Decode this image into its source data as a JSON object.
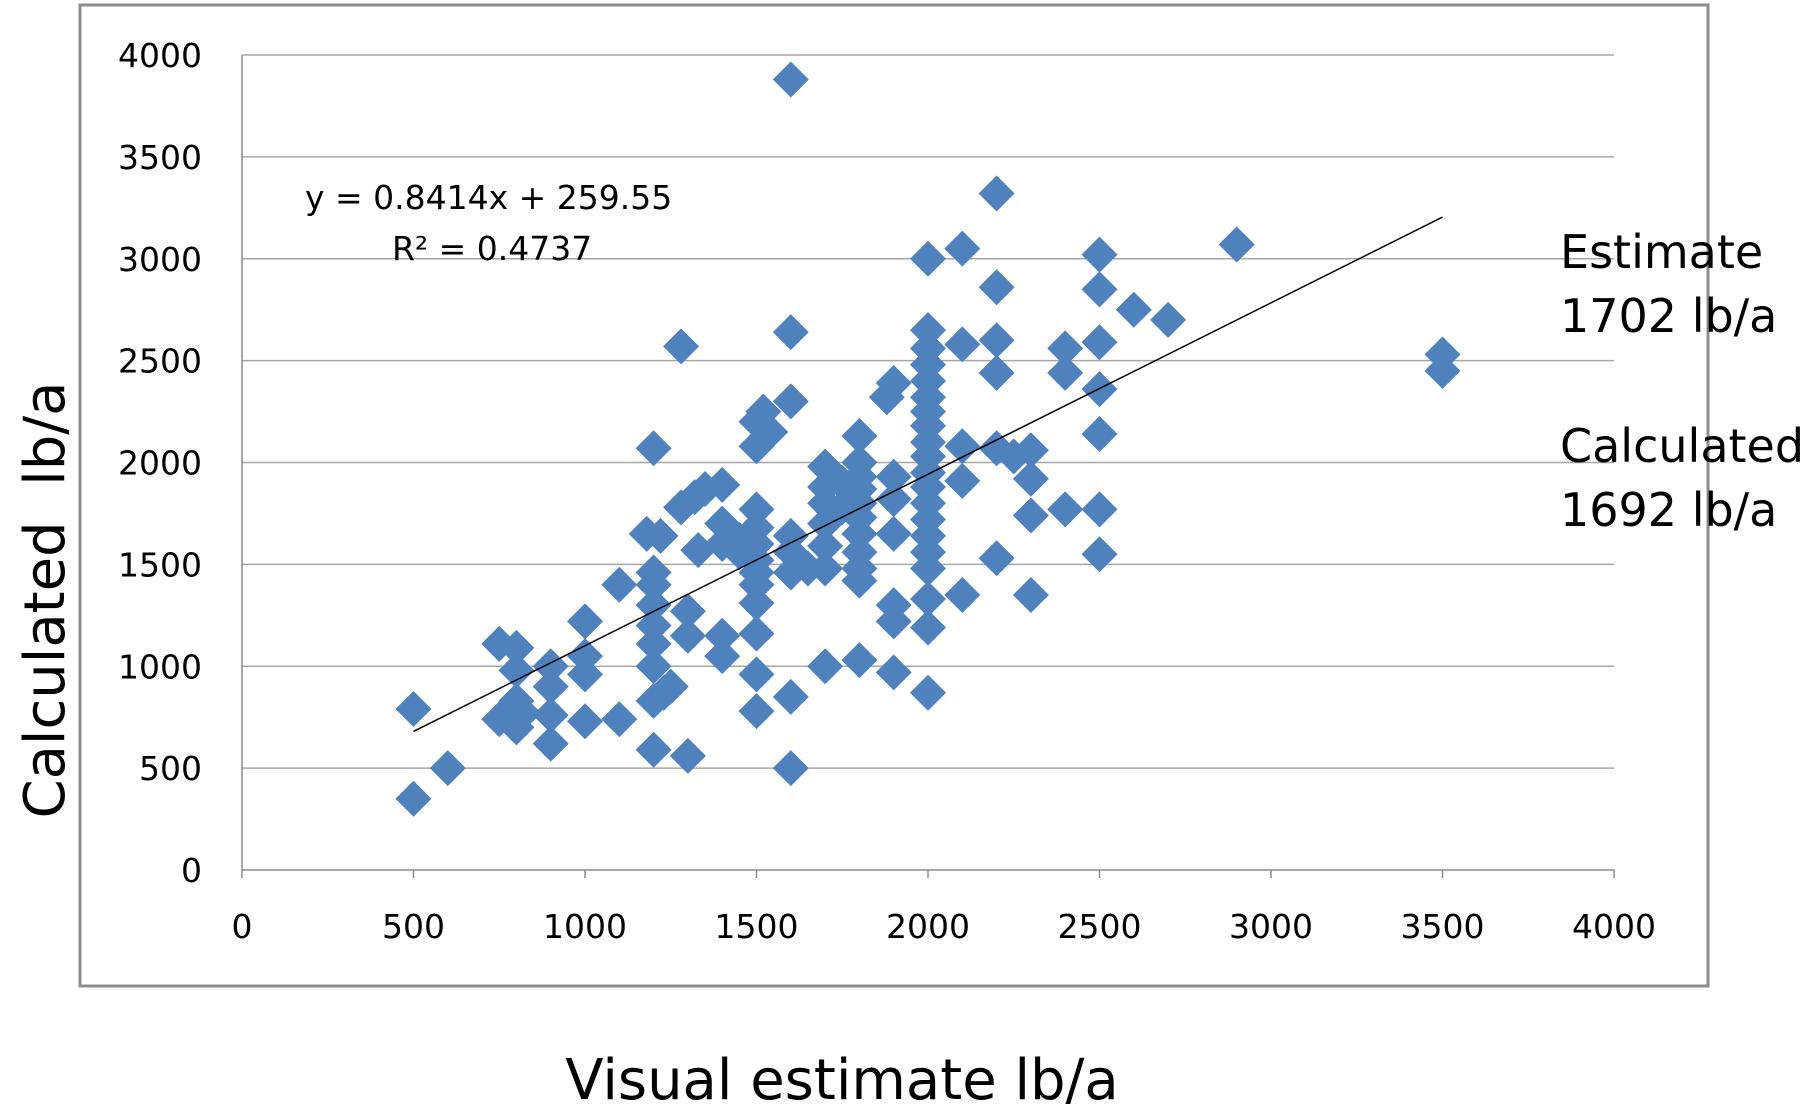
{
  "chart_data": {
    "type": "scatter",
    "xlabel": "Visual estimate lb/a",
    "ylabel": "Calculated  lb/a",
    "xlim": [
      0,
      4000
    ],
    "ylim": [
      0,
      4000
    ],
    "x_ticks": [
      "0",
      "500",
      "1000",
      "1500",
      "2000",
      "2500",
      "3000",
      "3500",
      "4000"
    ],
    "y_ticks": [
      "0",
      "500",
      "1000",
      "1500",
      "2000",
      "2500",
      "3000",
      "3500",
      "4000"
    ],
    "grid": "horizontal",
    "marker_color": "#4f81bd",
    "trendline": {
      "slope": 0.8414,
      "intercept": 259.55,
      "x_range": [
        500,
        3500
      ],
      "equation": "y = 0.8414x + 259.55",
      "r_squared": "R² = 0.4737"
    },
    "annotations": {
      "estimate_label": "Estimate",
      "estimate_value": "1702 lb/a",
      "calculated_label": "Calculated",
      "calculated_value": "1692 lb/a"
    },
    "points": [
      [
        500,
        790
      ],
      [
        500,
        350
      ],
      [
        600,
        500
      ],
      [
        750,
        1110
      ],
      [
        750,
        740
      ],
      [
        800,
        1090
      ],
      [
        800,
        980
      ],
      [
        800,
        830
      ],
      [
        800,
        700
      ],
      [
        820,
        770
      ],
      [
        900,
        1000
      ],
      [
        900,
        900
      ],
      [
        900,
        760
      ],
      [
        900,
        620
      ],
      [
        1000,
        1220
      ],
      [
        1000,
        1050
      ],
      [
        1000,
        960
      ],
      [
        1000,
        730
      ],
      [
        1100,
        1400
      ],
      [
        1100,
        740
      ],
      [
        1180,
        1650
      ],
      [
        1200,
        2070
      ],
      [
        1200,
        1460
      ],
      [
        1200,
        1400
      ],
      [
        1200,
        1300
      ],
      [
        1200,
        1200
      ],
      [
        1200,
        1110
      ],
      [
        1200,
        1000
      ],
      [
        1200,
        830
      ],
      [
        1200,
        590
      ],
      [
        1220,
        1640
      ],
      [
        1230,
        870
      ],
      [
        1250,
        900
      ],
      [
        1280,
        2570
      ],
      [
        1280,
        1780
      ],
      [
        1300,
        1270
      ],
      [
        1300,
        1150
      ],
      [
        1300,
        560
      ],
      [
        1320,
        1830
      ],
      [
        1330,
        1570
      ],
      [
        1350,
        1870
      ],
      [
        1400,
        1890
      ],
      [
        1400,
        1700
      ],
      [
        1400,
        1600
      ],
      [
        1400,
        1150
      ],
      [
        1400,
        1050
      ],
      [
        1450,
        1620
      ],
      [
        1450,
        1560
      ],
      [
        1500,
        2200
      ],
      [
        1500,
        2080
      ],
      [
        1500,
        1770
      ],
      [
        1500,
        1680
      ],
      [
        1500,
        1600
      ],
      [
        1500,
        1520
      ],
      [
        1500,
        1460
      ],
      [
        1500,
        1400
      ],
      [
        1500,
        1310
      ],
      [
        1500,
        1160
      ],
      [
        1500,
        960
      ],
      [
        1500,
        780
      ],
      [
        1520,
        2250
      ],
      [
        1540,
        2150
      ],
      [
        1600,
        3880
      ],
      [
        1600,
        2640
      ],
      [
        1600,
        2300
      ],
      [
        1600,
        1640
      ],
      [
        1600,
        1560
      ],
      [
        1600,
        1460
      ],
      [
        1600,
        850
      ],
      [
        1600,
        500
      ],
      [
        1650,
        1480
      ],
      [
        1700,
        1980
      ],
      [
        1700,
        1880
      ],
      [
        1700,
        1800
      ],
      [
        1700,
        1700
      ],
      [
        1700,
        1590
      ],
      [
        1700,
        1480
      ],
      [
        1700,
        1000
      ],
      [
        1750,
        1900
      ],
      [
        1750,
        1780
      ],
      [
        1800,
        2130
      ],
      [
        1800,
        2000
      ],
      [
        1800,
        1930
      ],
      [
        1800,
        1870
      ],
      [
        1800,
        1800
      ],
      [
        1800,
        1730
      ],
      [
        1800,
        1650
      ],
      [
        1800,
        1560
      ],
      [
        1800,
        1480
      ],
      [
        1800,
        1420
      ],
      [
        1800,
        1030
      ],
      [
        1880,
        2320
      ],
      [
        1900,
        2390
      ],
      [
        1900,
        1930
      ],
      [
        1900,
        1820
      ],
      [
        1900,
        1650
      ],
      [
        1900,
        1300
      ],
      [
        1900,
        1220
      ],
      [
        1900,
        970
      ],
      [
        2000,
        3000
      ],
      [
        2000,
        2650
      ],
      [
        2000,
        2560
      ],
      [
        2000,
        2480
      ],
      [
        2000,
        2400
      ],
      [
        2000,
        2320
      ],
      [
        2000,
        2250
      ],
      [
        2000,
        2180
      ],
      [
        2000,
        2100
      ],
      [
        2000,
        2030
      ],
      [
        2000,
        1950
      ],
      [
        2000,
        1880
      ],
      [
        2000,
        1800
      ],
      [
        2000,
        1720
      ],
      [
        2000,
        1640
      ],
      [
        2000,
        1560
      ],
      [
        2000,
        1480
      ],
      [
        2000,
        1330
      ],
      [
        2000,
        1190
      ],
      [
        2000,
        870
      ],
      [
        2100,
        3050
      ],
      [
        2100,
        2580
      ],
      [
        2100,
        2080
      ],
      [
        2100,
        1910
      ],
      [
        2100,
        1350
      ],
      [
        2200,
        3320
      ],
      [
        2200,
        2860
      ],
      [
        2200,
        2600
      ],
      [
        2200,
        2440
      ],
      [
        2200,
        2070
      ],
      [
        2200,
        1530
      ],
      [
        2250,
        2030
      ],
      [
        2300,
        2060
      ],
      [
        2300,
        1920
      ],
      [
        2300,
        1740
      ],
      [
        2300,
        1350
      ],
      [
        2400,
        2560
      ],
      [
        2400,
        2440
      ],
      [
        2400,
        1770
      ],
      [
        2500,
        3020
      ],
      [
        2500,
        2850
      ],
      [
        2500,
        2590
      ],
      [
        2500,
        2360
      ],
      [
        2500,
        2140
      ],
      [
        2500,
        1770
      ],
      [
        2500,
        1550
      ],
      [
        2600,
        2750
      ],
      [
        2700,
        2700
      ],
      [
        2900,
        3070
      ],
      [
        3500,
        2530
      ],
      [
        3500,
        2450
      ]
    ]
  }
}
